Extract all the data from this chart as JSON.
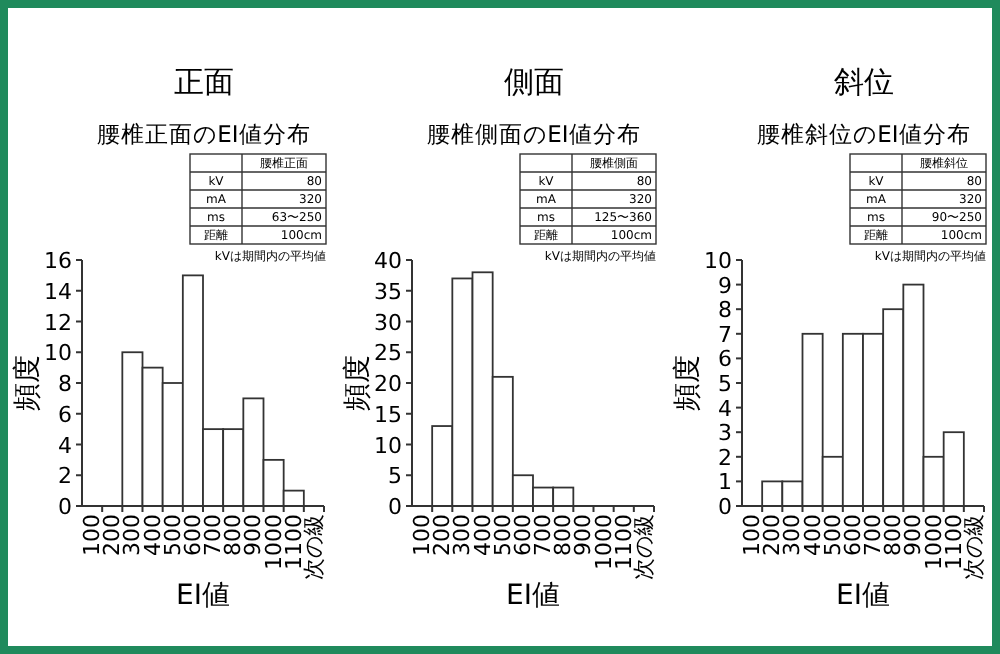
{
  "chart_data": [
    {
      "type": "bar",
      "title": "正面",
      "subtitle": "腰椎正面のEI値分布",
      "xlabel": "EI値",
      "ylabel": "頻度",
      "color": "#ffffff",
      "categories": [
        "100",
        "200",
        "300",
        "400",
        "500",
        "600",
        "700",
        "800",
        "900",
        "1000",
        "1100",
        "次の級"
      ],
      "values": [
        0,
        0,
        10,
        9,
        8,
        15,
        5,
        5,
        7,
        3,
        1,
        0
      ],
      "ylim": [
        0,
        16
      ],
      "yticks": [
        0,
        2,
        4,
        6,
        8,
        10,
        12,
        14,
        16
      ],
      "annotations": [
        "腰椎正面",
        "kV",
        "80",
        "mA",
        "320",
        "ms",
        "63〜250",
        "距離",
        "100cm",
        "kVは期間内の平均値"
      ]
    },
    {
      "type": "bar",
      "title": "側面",
      "subtitle": "腰椎側面のEI値分布",
      "xlabel": "EI値",
      "ylabel": "頻度",
      "color": "#ffffff",
      "categories": [
        "100",
        "200",
        "300",
        "400",
        "500",
        "600",
        "700",
        "800",
        "900",
        "1000",
        "1100",
        "次の級"
      ],
      "values": [
        0,
        13,
        37,
        38,
        21,
        5,
        3,
        3,
        0,
        0,
        0,
        0
      ],
      "ylim": [
        0,
        40
      ],
      "yticks": [
        0,
        5,
        10,
        15,
        20,
        25,
        30,
        35,
        40
      ],
      "annotations": [
        "腰椎側面",
        "kV",
        "80",
        "mA",
        "320",
        "ms",
        "125〜360",
        "距離",
        "100cm",
        "kVは期間内の平均値"
      ]
    },
    {
      "type": "bar",
      "title": "斜位",
      "subtitle": "腰椎斜位のEI値分布",
      "xlabel": "EI値",
      "ylabel": "頻度",
      "color": "#ffffff",
      "categories": [
        "100",
        "200",
        "300",
        "400",
        "500",
        "600",
        "700",
        "800",
        "900",
        "1000",
        "1100",
        "次の級"
      ],
      "values": [
        0,
        1,
        1,
        7,
        2,
        7,
        7,
        8,
        9,
        2,
        3,
        0
      ],
      "ylim": [
        0,
        10
      ],
      "yticks": [
        0,
        1,
        2,
        3,
        4,
        5,
        6,
        7,
        8,
        9,
        10
      ],
      "annotations": [
        "腰椎斜位",
        "kV",
        "80",
        "mA",
        "320",
        "ms",
        "90〜250",
        "距離",
        "100cm",
        "kVは期間内の平均値"
      ]
    }
  ]
}
